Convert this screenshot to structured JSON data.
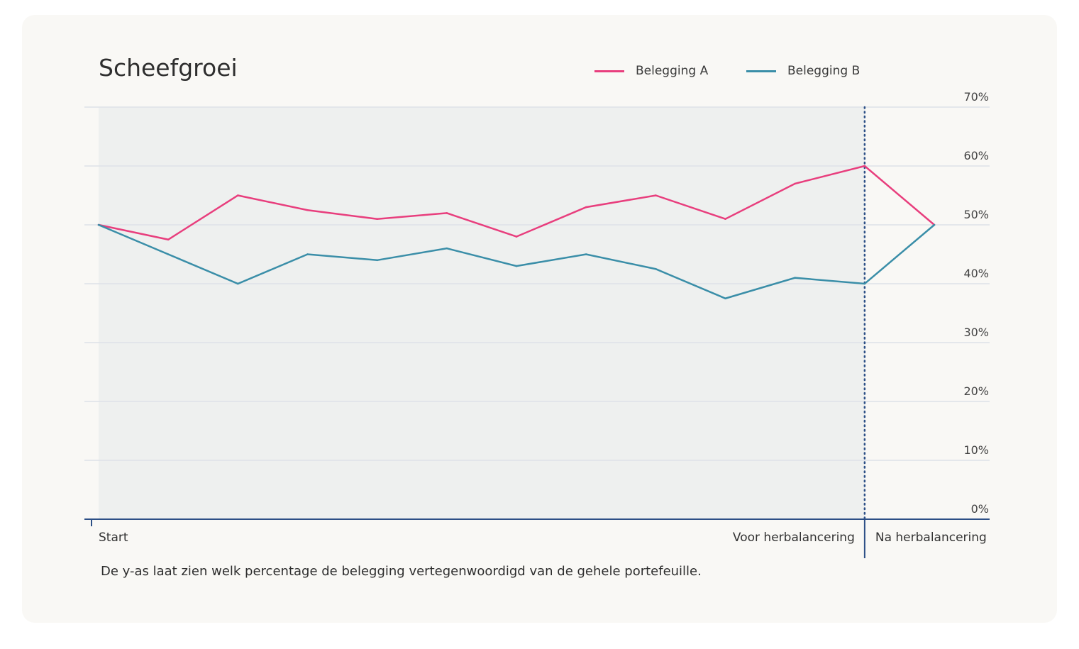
{
  "chart_data": {
    "type": "line",
    "title": "Scheefgroei",
    "xlabel": "",
    "ylabel": "",
    "ylim": [
      0,
      70
    ],
    "yticks": [
      "0%",
      "10%",
      "20%",
      "30%",
      "40%",
      "50%",
      "60%",
      "70%"
    ],
    "ytick_values": [
      0,
      10,
      20,
      30,
      40,
      50,
      60,
      70
    ],
    "x": [
      0,
      1,
      2,
      3,
      4,
      5,
      6,
      7,
      8,
      9,
      10,
      11,
      12
    ],
    "x_labels": {
      "start": "Start",
      "before": "Voor herbalancering",
      "after": "Na herbalancering"
    },
    "rebalance_x": 11,
    "legend_position": "top-right",
    "grid": true,
    "series": [
      {
        "name": "Belegging A",
        "color": "#e83e7d",
        "values": [
          50,
          47.5,
          55,
          52.5,
          51,
          52,
          48,
          53,
          55,
          51,
          57,
          60,
          50
        ]
      },
      {
        "name": "Belegging B",
        "color": "#3a8ea8",
        "values": [
          50,
          45,
          40,
          45,
          44,
          46,
          43,
          45,
          42.5,
          37.5,
          41,
          40,
          50
        ]
      }
    ]
  },
  "footnote": "De y-as laat zien welk percentage de belegging vertegenwoordigd van de gehele portefeuille."
}
